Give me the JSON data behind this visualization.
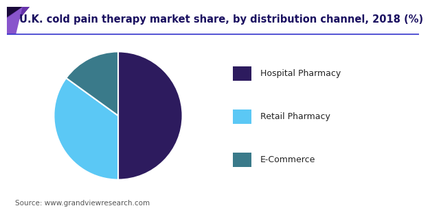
{
  "title": "U.K. cold pain therapy market share, by distribution channel, 2018 (%)",
  "labels": [
    "Hospital Pharmacy",
    "Retail Pharmacy",
    "E-Commerce"
  ],
  "values": [
    50,
    35,
    15
  ],
  "colors": [
    "#2d1b5e",
    "#5bc8f5",
    "#3a7a8a"
  ],
  "legend_labels": [
    "Hospital Pharmacy",
    "Retail Pharmacy",
    "E-Commerce"
  ],
  "source_text": "Source: www.grandviewresearch.com",
  "title_fontsize": 10.5,
  "legend_fontsize": 9,
  "source_fontsize": 7.5,
  "header_line_color": "#3333cc",
  "triangle_dark": "#1a0a3a",
  "triangle_mid": "#6633aa",
  "triangle_light": "#8855cc",
  "background_color": "#ffffff"
}
